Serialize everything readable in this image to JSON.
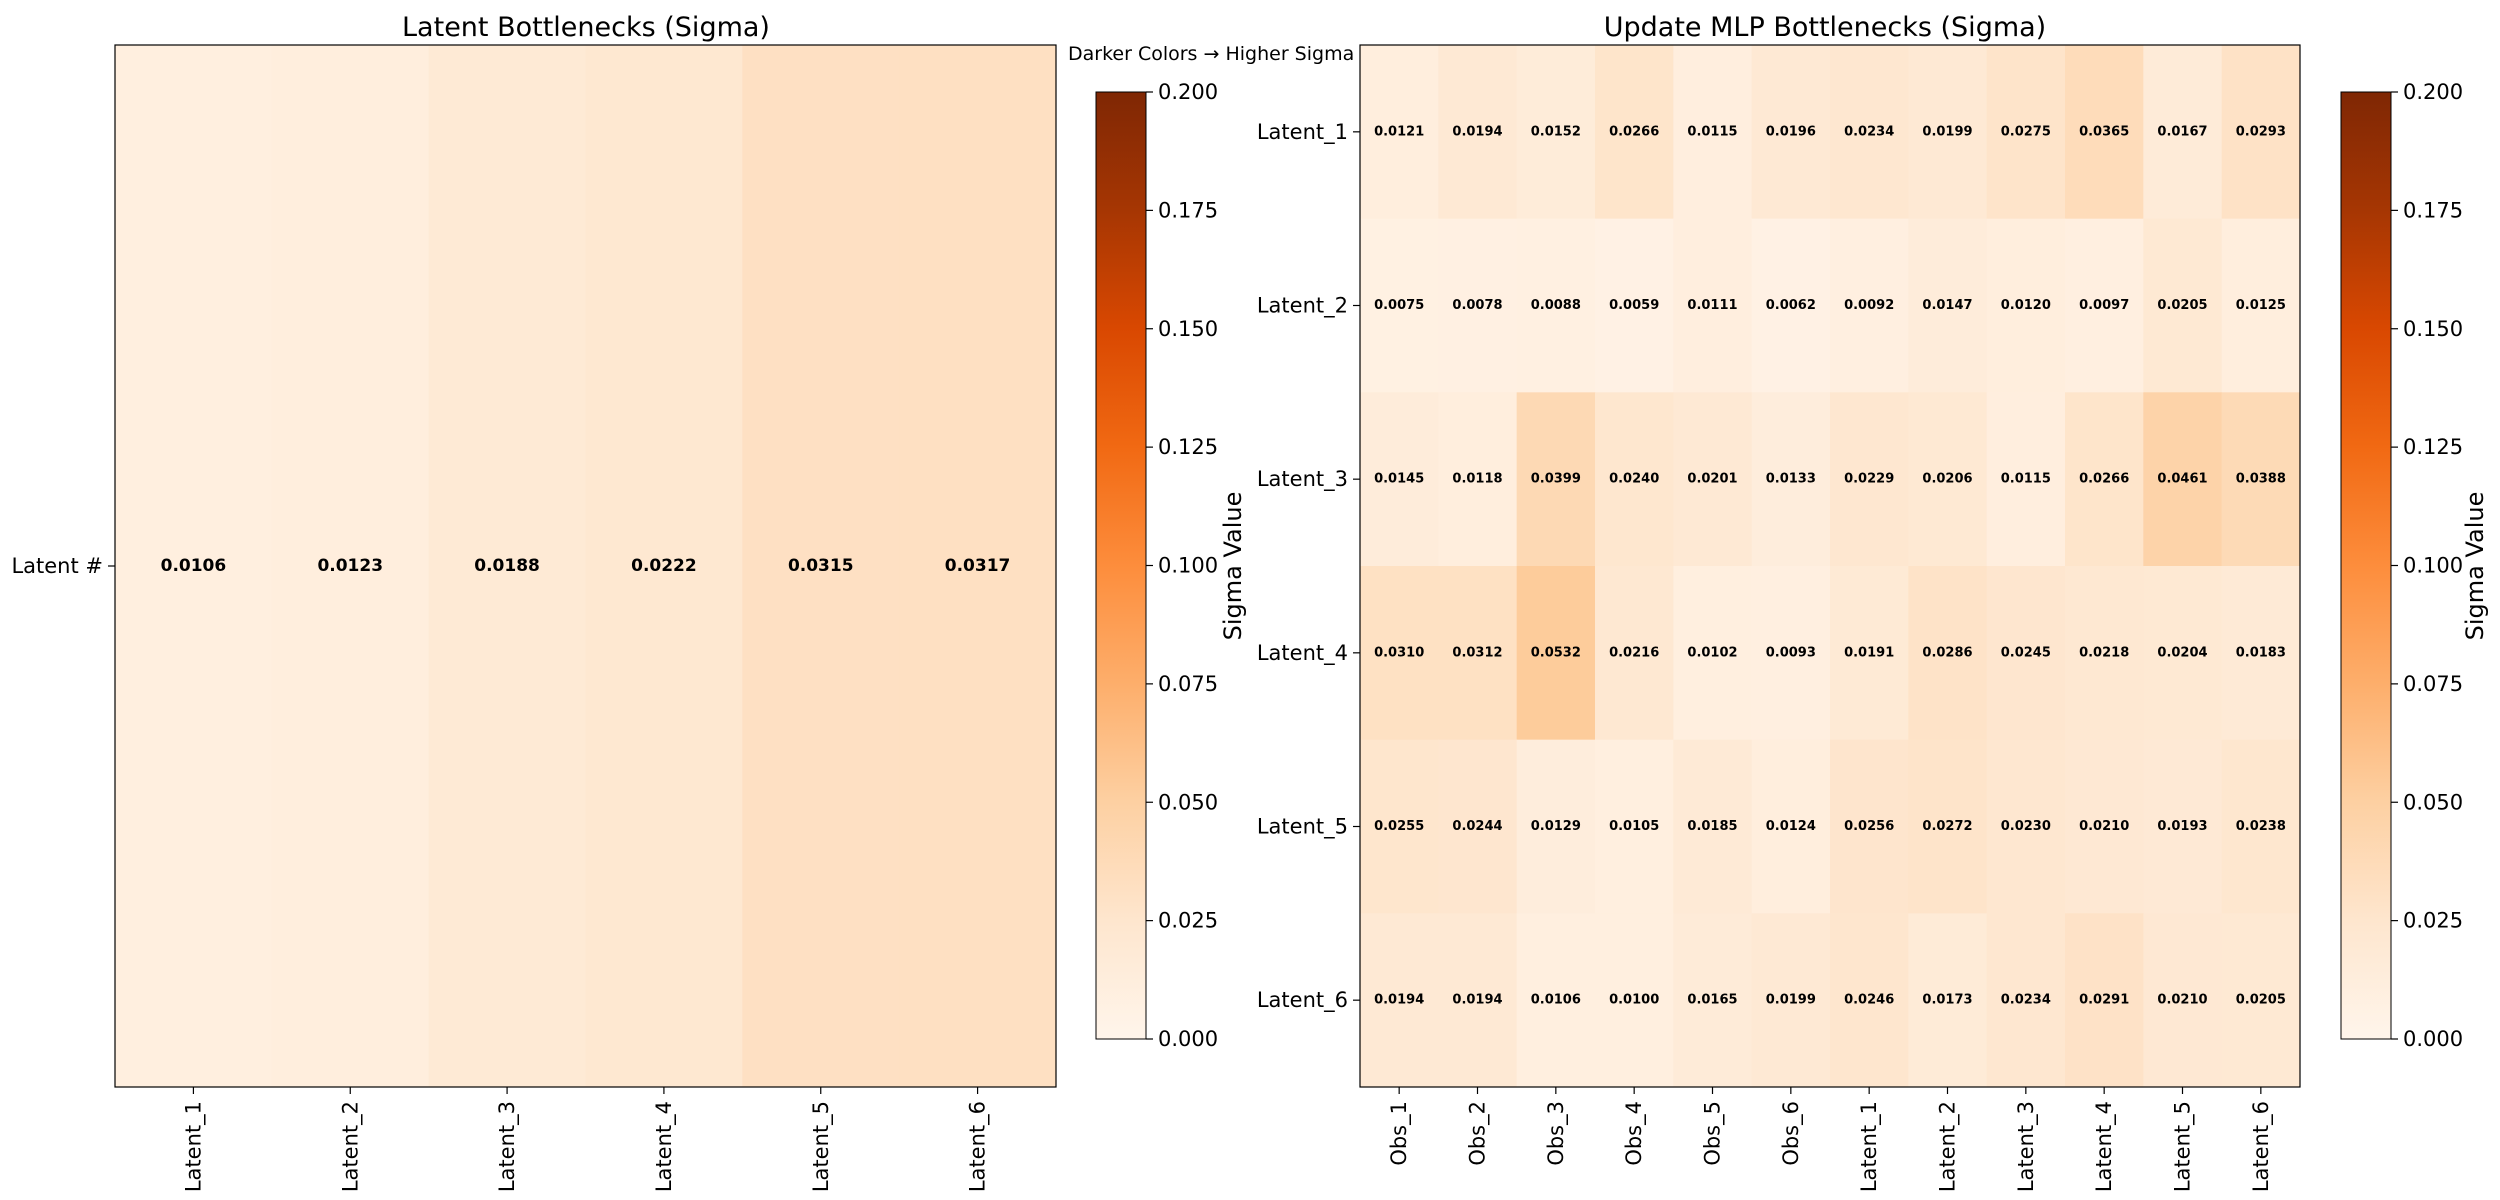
{
  "annotation": "Darker Colors → Higher Sigma Values",
  "colorbar_label": "Sigma Value",
  "colorbar_ticks": [
    "0.000",
    "0.025",
    "0.050",
    "0.075",
    "0.100",
    "0.125",
    "0.150",
    "0.175",
    "0.200"
  ],
  "colormap": {
    "name": "Oranges",
    "stops": [
      "#fff5eb",
      "#fee6ce",
      "#fdd0a2",
      "#fdae6b",
      "#fd8d3c",
      "#f16913",
      "#d94801",
      "#a63603",
      "#7f2704"
    ]
  },
  "chart_data": [
    {
      "type": "heatmap",
      "title": "Latent Bottlenecks (Sigma)",
      "rows": [
        "Latent #"
      ],
      "cols": [
        "Latent_1",
        "Latent_2",
        "Latent_3",
        "Latent_4",
        "Latent_5",
        "Latent_6"
      ],
      "values": [
        [
          0.0106,
          0.0123,
          0.0188,
          0.0222,
          0.0315,
          0.0317
        ]
      ],
      "vmin": 0.0,
      "vmax": 0.2,
      "colorbar": "Sigma Value"
    },
    {
      "type": "heatmap",
      "title": "Update MLP Bottlenecks (Sigma)",
      "rows": [
        "Latent_1",
        "Latent_2",
        "Latent_3",
        "Latent_4",
        "Latent_5",
        "Latent_6"
      ],
      "cols": [
        "Obs_1",
        "Obs_2",
        "Obs_3",
        "Obs_4",
        "Obs_5",
        "Obs_6",
        "Latent_1",
        "Latent_2",
        "Latent_3",
        "Latent_4",
        "Latent_5",
        "Latent_6"
      ],
      "values": [
        [
          0.0121,
          0.0194,
          0.0152,
          0.0266,
          0.0115,
          0.0196,
          0.0234,
          0.0199,
          0.0275,
          0.0365,
          0.0167,
          0.0293
        ],
        [
          0.0075,
          0.0078,
          0.0088,
          0.0059,
          0.0111,
          0.0062,
          0.0092,
          0.0147,
          0.012,
          0.0097,
          0.0205,
          0.0125
        ],
        [
          0.0145,
          0.0118,
          0.0399,
          0.024,
          0.0201,
          0.0133,
          0.0229,
          0.0206,
          0.0115,
          0.0266,
          0.0461,
          0.0388
        ],
        [
          0.031,
          0.0312,
          0.0532,
          0.0216,
          0.0102,
          0.0093,
          0.0191,
          0.0286,
          0.0245,
          0.0218,
          0.0204,
          0.0183
        ],
        [
          0.0255,
          0.0244,
          0.0129,
          0.0105,
          0.0185,
          0.0124,
          0.0256,
          0.0272,
          0.023,
          0.021,
          0.0193,
          0.0238
        ],
        [
          0.0194,
          0.0194,
          0.0106,
          0.01,
          0.0165,
          0.0199,
          0.0246,
          0.0173,
          0.0234,
          0.0291,
          0.021,
          0.0205
        ]
      ],
      "vmin": 0.0,
      "vmax": 0.2,
      "colorbar": "Sigma Value"
    }
  ]
}
